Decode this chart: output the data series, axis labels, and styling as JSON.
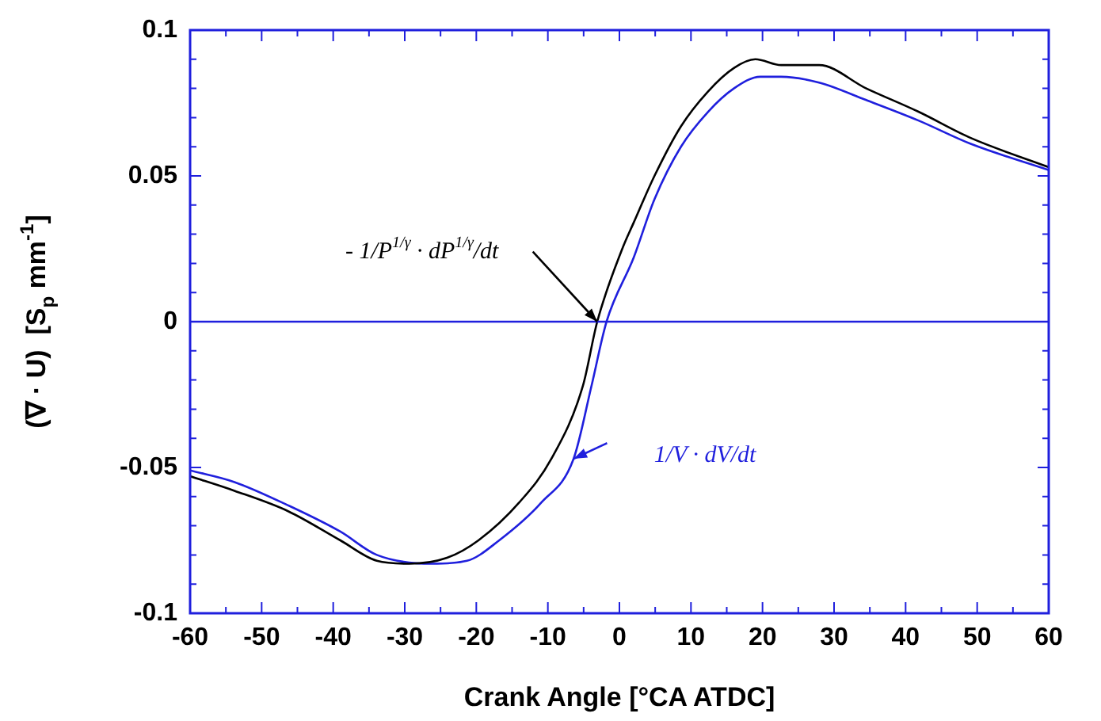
{
  "chart_data": {
    "type": "line",
    "xlabel": "Crank Angle [°CA ATDC]",
    "ylabel": "(∇ · U)  [S$_{p}$ mm$^{-1}$]",
    "xlim": [
      -60,
      60
    ],
    "xticks": [
      -60,
      {
        "value": -55,
        "label": null
      },
      -50,
      {
        "value": -45,
        "label": null
      },
      -40,
      {
        "value": -35,
        "label": null
      },
      -30,
      {
        "value": -25,
        "label": null
      },
      -20,
      {
        "value": -15,
        "label": null
      },
      -10,
      {
        "value": -5,
        "label": null
      },
      0,
      {
        "value": 5,
        "label": null
      },
      10,
      {
        "value": 15,
        "label": null
      },
      20,
      {
        "value": 25,
        "label": null
      },
      30,
      {
        "value": 35,
        "label": null
      },
      40,
      {
        "value": 45,
        "label": null
      },
      50,
      {
        "value": 55,
        "label": null
      },
      60
    ],
    "ylim": [
      -0.1,
      0.1
    ],
    "yticks": [
      -0.1,
      {
        "value": -0.09,
        "label": null
      },
      {
        "value": -0.08,
        "label": null
      },
      {
        "value": -0.07,
        "label": null
      },
      {
        "value": -0.06,
        "label": null
      },
      -0.05,
      {
        "value": -0.04,
        "label": null
      },
      {
        "value": -0.03,
        "label": null
      },
      {
        "value": -0.02,
        "label": null
      },
      {
        "value": -0.01,
        "label": null
      },
      0,
      {
        "value": 0.01,
        "label": null
      },
      {
        "value": 0.02,
        "label": null
      },
      {
        "value": 0.03,
        "label": null
      },
      {
        "value": 0.04,
        "label": null
      },
      0.05,
      {
        "value": 0.06,
        "label": null
      },
      {
        "value": 0.07,
        "label": null
      },
      {
        "value": 0.08,
        "label": null
      },
      {
        "value": 0.09,
        "label": null
      },
      0.1
    ],
    "grid": false,
    "legend": false,
    "marker": "none",
    "line_style": "solid",
    "series": [
      {
        "color": "#000000",
        "x": [
          -60,
          -53.8,
          -46.3,
          -39,
          -33.9,
          -29.4,
          -24.1,
          -19.7,
          -14,
          -9.5,
          -5.1,
          -3.1,
          0.4,
          2,
          4.9,
          8.6,
          12.4,
          16,
          19,
          22.6,
          27.9,
          34.5,
          41.8,
          49.1,
          60
        ],
        "values": [
          -0.053,
          -0.058,
          -0.065,
          -0.075,
          -0.082,
          -0.083,
          -0.081,
          -0.075,
          -0.062,
          -0.047,
          -0.022,
          0,
          0.025,
          0.034,
          0.05,
          0.067,
          0.079,
          0.087,
          0.09,
          0.088,
          0.088,
          0.08,
          0.072,
          0.063,
          0.053
        ]
      },
      {
        "color": "#1f1fdd",
        "x": [
          -60,
          -53.8,
          -46.3,
          -39,
          -33.9,
          -26.3,
          -21.3,
          -16.8,
          -10.9,
          -6.4,
          -3.9,
          -1.8,
          2,
          4.9,
          8.6,
          12.4,
          16,
          19.7,
          22.6,
          27.9,
          34.5,
          41.8,
          49.1,
          60
        ],
        "values": [
          -0.051,
          -0.055,
          -0.063,
          -0.072,
          -0.08,
          -0.083,
          -0.082,
          -0.075,
          -0.062,
          -0.047,
          -0.022,
          0,
          0.022,
          0.042,
          0.06,
          0.072,
          0.08,
          0.084,
          0.084,
          0.082,
          0.076,
          0.069,
          0.061,
          0.052
        ]
      }
    ],
    "ref_lines": [
      {
        "axis": "y",
        "value": 0,
        "color": "#1f1fdd"
      }
    ],
    "annotations": [
      "- 1/P$^{1/γ}$ · dP$^{1/γ}$/dt",
      "1/V · dV/dt"
    ]
  }
}
